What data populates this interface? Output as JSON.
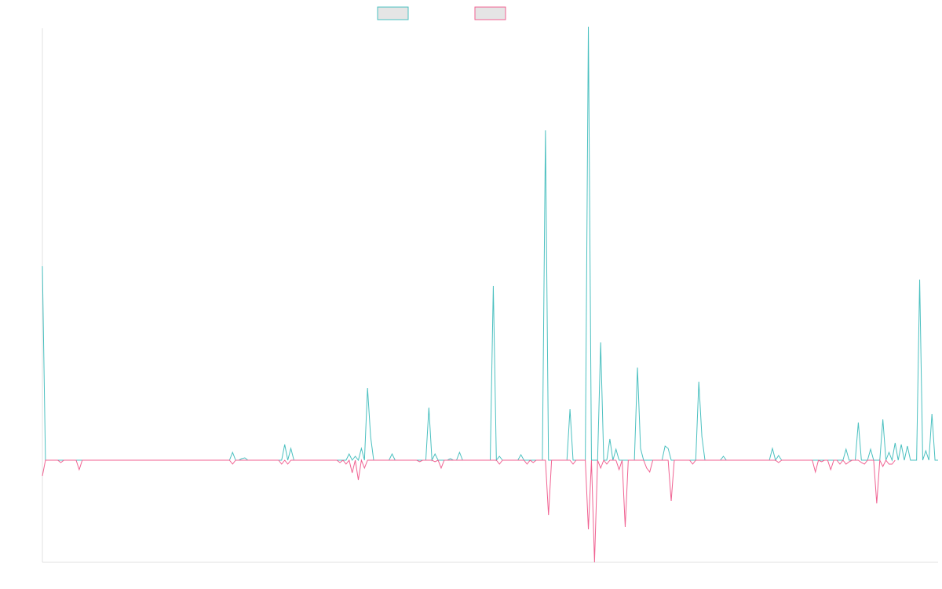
{
  "chart_data": {
    "type": "line",
    "title": "",
    "xlabel": "",
    "ylabel": "",
    "grid": false,
    "legend_placement": "top-center",
    "ylim": [
      -130,
      550
    ],
    "series": [
      {
        "color": "#4bc0c0",
        "values": [
          247,
          0,
          0,
          0,
          0,
          0,
          0,
          0,
          0,
          0,
          0,
          0,
          0,
          0,
          0,
          0,
          0,
          0,
          0,
          0,
          0,
          0,
          0,
          0,
          0,
          0,
          0,
          0,
          0,
          0,
          0,
          0,
          0,
          0,
          0,
          0,
          0,
          0,
          0,
          0,
          0,
          0,
          0,
          0,
          0,
          0,
          0,
          0,
          0,
          0,
          0,
          0,
          0,
          0,
          0,
          0,
          0,
          0,
          0,
          0,
          0,
          0,
          10,
          0,
          0,
          2,
          3,
          0,
          0,
          0,
          0,
          0,
          0,
          0,
          0,
          0,
          0,
          0,
          0,
          20,
          0,
          15,
          0,
          0,
          0,
          0,
          0,
          0,
          0,
          0,
          0,
          0,
          0,
          0,
          0,
          0,
          0,
          0,
          0,
          0,
          8,
          0,
          5,
          0,
          15,
          0,
          92,
          30,
          0,
          0,
          0,
          0,
          0,
          0,
          8,
          0,
          0,
          0,
          0,
          0,
          0,
          0,
          0,
          0,
          0,
          0,
          67,
          0,
          8,
          0,
          0,
          0,
          0,
          2,
          0,
          0,
          10,
          0,
          0,
          0,
          0,
          0,
          0,
          0,
          0,
          0,
          0,
          222,
          0,
          5,
          0,
          0,
          0,
          0,
          0,
          0,
          7,
          0,
          0,
          0,
          0,
          0,
          0,
          0,
          420,
          0,
          0,
          0,
          0,
          0,
          0,
          0,
          65,
          0,
          0,
          0,
          0,
          0,
          552,
          0,
          0,
          0,
          150,
          0,
          0,
          27,
          0,
          14,
          0,
          0,
          0,
          0,
          0,
          0,
          118,
          15,
          0,
          0,
          0,
          0,
          0,
          0,
          0,
          18,
          15,
          0,
          0,
          0,
          0,
          0,
          0,
          0,
          0,
          0,
          100,
          30,
          0,
          0,
          0,
          0,
          0,
          0,
          5,
          0,
          0,
          0,
          0,
          0,
          0,
          0,
          0,
          0,
          0,
          0,
          0,
          0,
          0,
          0,
          15,
          0,
          6,
          0,
          0,
          0,
          0,
          0,
          0,
          0,
          0,
          0,
          0,
          0,
          0,
          0,
          0,
          0,
          0,
          0,
          0,
          0,
          0,
          0,
          14,
          0,
          0,
          0,
          48,
          0,
          0,
          0,
          14,
          0,
          0,
          0,
          52,
          0,
          10,
          0,
          22,
          0,
          20,
          0,
          18,
          0,
          0,
          0,
          230,
          0,
          12,
          0,
          59,
          0,
          0
        ]
      },
      {
        "color": "#f06292",
        "values": [
          -20,
          0,
          0,
          0,
          0,
          0,
          -3,
          0,
          0,
          0,
          0,
          0,
          -12,
          0,
          0,
          0,
          0,
          0,
          0,
          0,
          0,
          0,
          0,
          0,
          0,
          0,
          0,
          0,
          0,
          0,
          0,
          0,
          0,
          0,
          0,
          0,
          0,
          0,
          0,
          0,
          0,
          0,
          0,
          0,
          0,
          0,
          0,
          0,
          0,
          0,
          0,
          0,
          0,
          0,
          0,
          0,
          0,
          0,
          0,
          0,
          0,
          0,
          -5,
          0,
          0,
          0,
          0,
          0,
          0,
          0,
          0,
          0,
          0,
          0,
          0,
          0,
          0,
          0,
          -5,
          0,
          -5,
          0,
          0,
          0,
          0,
          0,
          0,
          0,
          0,
          0,
          0,
          0,
          0,
          0,
          0,
          0,
          0,
          -3,
          0,
          -5,
          0,
          -16,
          0,
          -25,
          0,
          -10,
          0,
          0,
          0,
          0,
          0,
          0,
          0,
          0,
          0,
          0,
          0,
          0,
          0,
          0,
          0,
          0,
          0,
          -2,
          0,
          0,
          0,
          0,
          -2,
          0,
          -10,
          0,
          0,
          0,
          0,
          0,
          0,
          0,
          0,
          0,
          0,
          0,
          0,
          0,
          0,
          0,
          0,
          0,
          0,
          -5,
          0,
          0,
          0,
          0,
          0,
          0,
          0,
          0,
          -5,
          0,
          -3,
          0,
          0,
          0,
          0,
          -70,
          0,
          0,
          0,
          0,
          0,
          0,
          0,
          -5,
          0,
          0,
          0,
          0,
          -88,
          0,
          -130,
          0,
          -10,
          0,
          -5,
          0,
          0,
          0,
          -12,
          0,
          -85,
          0,
          0,
          0,
          0,
          0,
          0,
          -10,
          -15,
          0,
          0,
          0,
          0,
          0,
          0,
          -52,
          0,
          0,
          0,
          0,
          0,
          0,
          -5,
          0,
          0,
          0,
          0,
          0,
          0,
          0,
          0,
          0,
          0,
          0,
          0,
          0,
          0,
          0,
          0,
          0,
          0,
          0,
          0,
          0,
          0,
          0,
          0,
          0,
          0,
          0,
          -3,
          0,
          0,
          0,
          0,
          0,
          0,
          0,
          0,
          0,
          0,
          0,
          -15,
          0,
          -2,
          0,
          0,
          -12,
          0,
          0,
          -5,
          0,
          -5,
          -2,
          0,
          0,
          0,
          -3,
          -5,
          0,
          0,
          0,
          -55,
          0,
          -8,
          0,
          -5,
          -5,
          0
        ]
      }
    ]
  }
}
